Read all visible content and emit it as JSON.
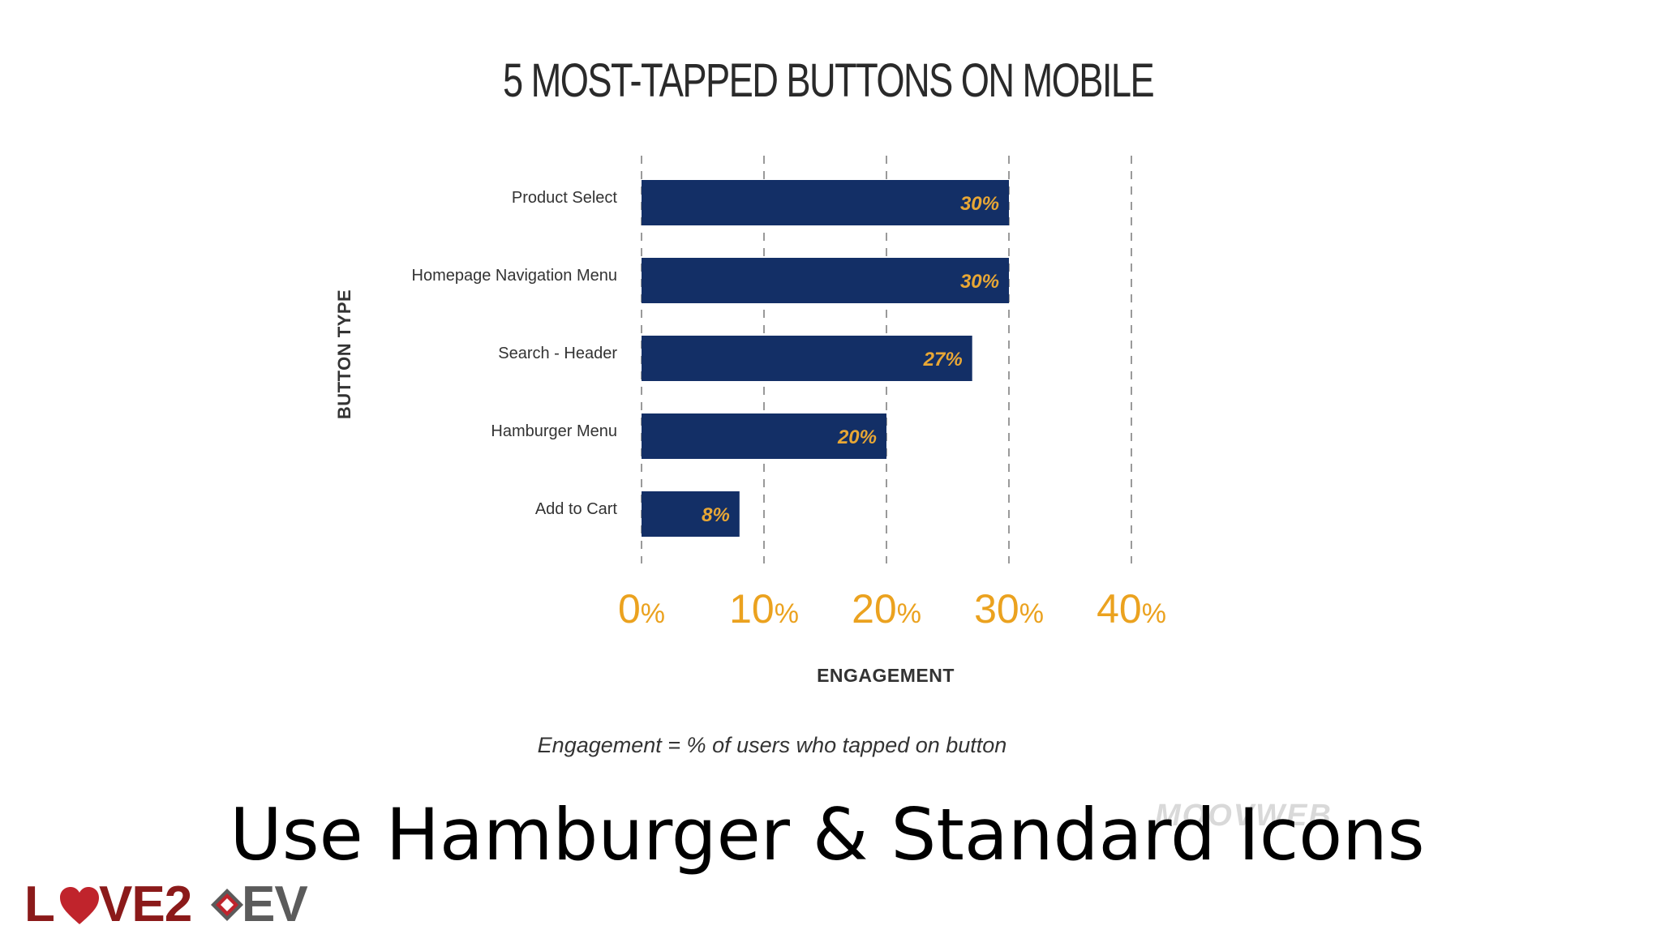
{
  "chart_data": {
    "type": "bar",
    "orientation": "horizontal",
    "title": "5 MOST-TAPPED BUTTONS ON MOBILE",
    "xlabel": "ENGAGEMENT",
    "ylabel": "BUTTON TYPE",
    "categories": [
      "Product Select",
      "Homepage Navigation Menu",
      "Search - Header",
      "Hamburger Menu",
      "Add to Cart"
    ],
    "values": [
      30,
      30,
      27,
      20,
      8
    ],
    "value_labels": [
      "30%",
      "30%",
      "27%",
      "20%",
      "8%"
    ],
    "xlim": [
      0,
      40
    ],
    "x_ticks": [
      {
        "value": 0,
        "num": "0",
        "unit": "%"
      },
      {
        "value": 10,
        "num": "10",
        "unit": "%"
      },
      {
        "value": 20,
        "num": "20",
        "unit": "%"
      },
      {
        "value": 30,
        "num": "30",
        "unit": "%"
      },
      {
        "value": 40,
        "num": "40",
        "unit": "%"
      }
    ],
    "grid": "vertical dashed",
    "note": "Engagement = % of users who tapped on button",
    "colors": {
      "bar": "#132f66",
      "value_label": "#e8a735",
      "tick": "#eba21f",
      "grid": "#9a9a9a"
    }
  },
  "watermark": "MOOVWEB",
  "slide": {
    "heading": "Use Hamburger & Standard Icons"
  },
  "brand": {
    "part1": "L",
    "part2": "VE2",
    "part3": "EV",
    "colors": {
      "dark": "#8b1a1a",
      "grey": "#5b5b5b",
      "red": "#c0242c"
    }
  }
}
